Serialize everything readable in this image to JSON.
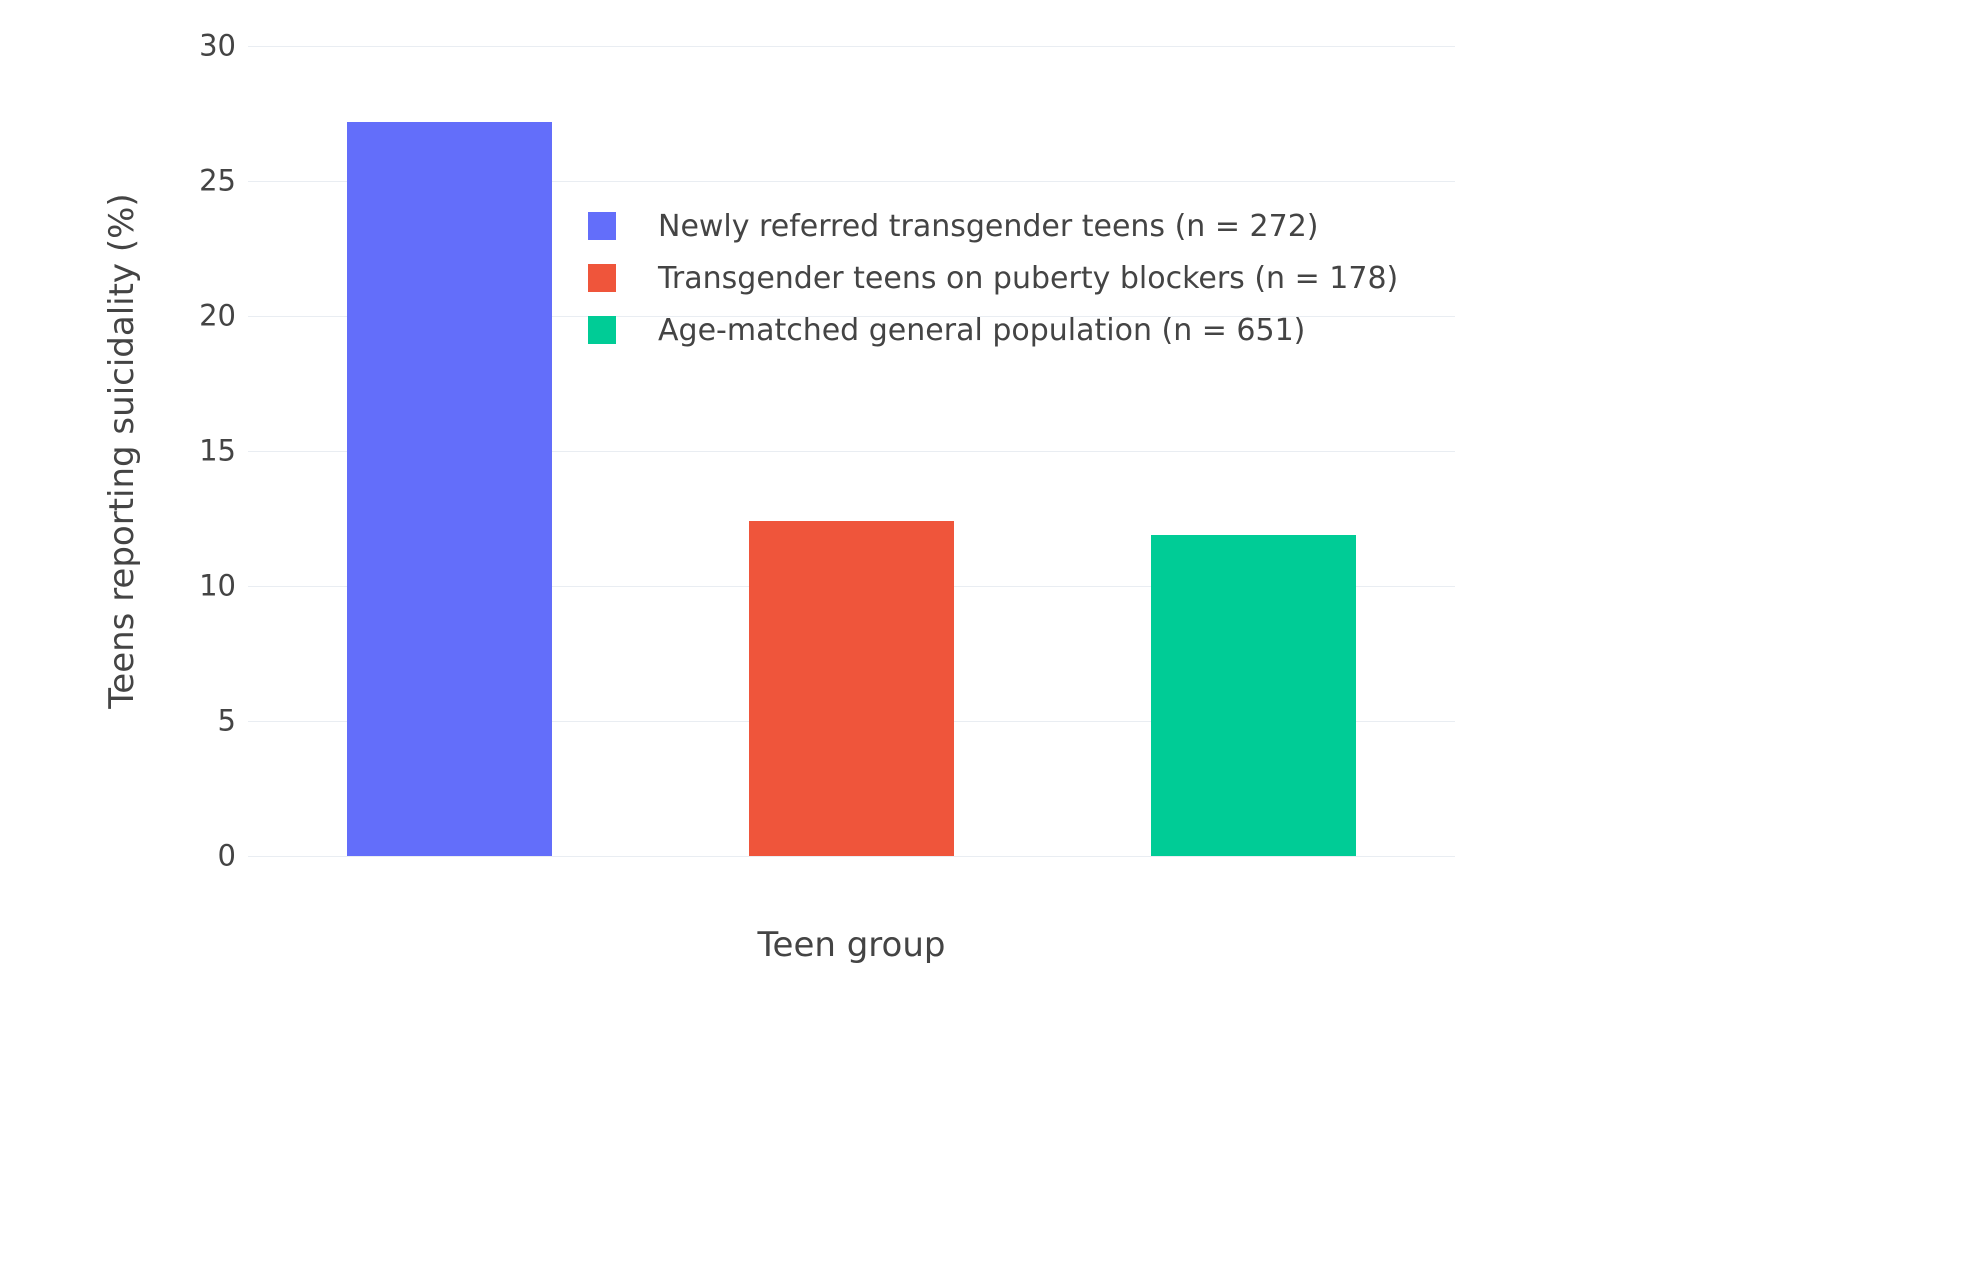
{
  "colors": {
    "background": "#ffffff",
    "grid": "#e9edf2",
    "text": "#444444"
  },
  "chart_data": {
    "type": "bar",
    "categories": [
      "Newly referred transgender teens (n = 272)",
      "Transgender teens on puberty blockers (n = 178)",
      "Age-matched general population (n = 651)"
    ],
    "values": [
      27.2,
      12.4,
      11.9
    ],
    "bar_colors": [
      "#636efa",
      "#ef553b",
      "#00cc96"
    ],
    "title": "",
    "xlabel": "Teen group",
    "ylabel": "Teens reporting suicidality (%)",
    "ylim": [
      0,
      30
    ],
    "yticks": [
      0,
      5,
      10,
      15,
      20,
      25,
      30
    ],
    "grid": true,
    "legend_position": "upper-center",
    "legend": [
      {
        "label": "Newly referred transgender teens (n = 272)",
        "color": "#636efa"
      },
      {
        "label": "Transgender teens on puberty blockers (n = 178)",
        "color": "#ef553b"
      },
      {
        "label": "Age-matched general population (n = 651)",
        "color": "#00cc96"
      }
    ]
  }
}
